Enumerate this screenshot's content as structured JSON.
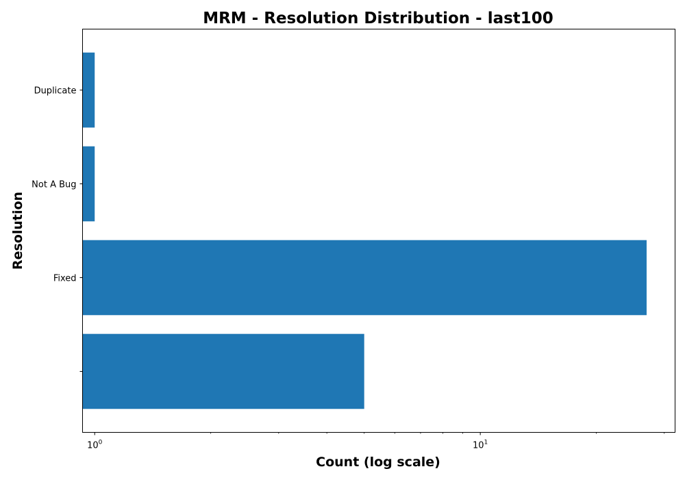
{
  "chart_data": {
    "type": "bar",
    "orientation": "horizontal",
    "title": "MRM - Resolution Distribution - last100",
    "xlabel": "Count (log scale)",
    "ylabel": "Resolution",
    "x_scale": "log",
    "xlim": [
      0.93,
      32
    ],
    "x_ticks": [
      {
        "value": 1,
        "base": "10",
        "exp": "0"
      },
      {
        "value": 10,
        "base": "10",
        "exp": "1"
      }
    ],
    "categories": [
      "",
      "Fixed",
      "Not A Bug",
      "Duplicate"
    ],
    "values": [
      5,
      27,
      1,
      1
    ],
    "bar_color": "#1f77b4",
    "grid": false,
    "legend": "none"
  }
}
